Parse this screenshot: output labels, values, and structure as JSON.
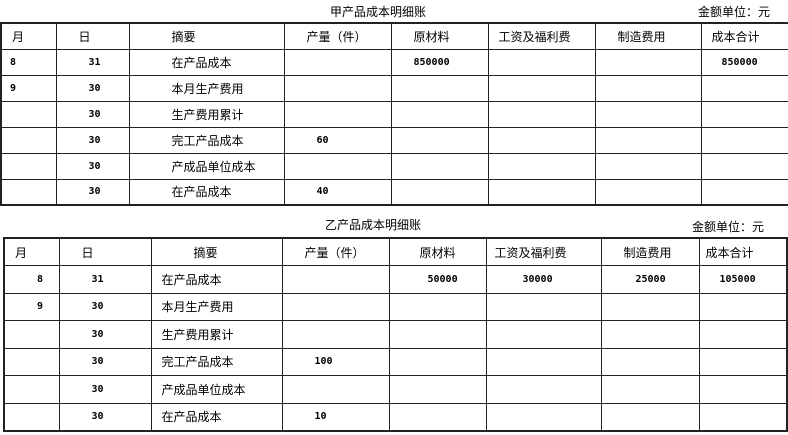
{
  "tables": [
    {
      "title": "甲产品成本明细账",
      "unit": "金额单位：元",
      "headers": [
        "月",
        "日",
        "摘要",
        "产量（件）",
        "原材料",
        "工资及福利费",
        "制造费用",
        "成本合计"
      ],
      "rows": [
        [
          "8",
          "31",
          "在产品成本",
          "",
          "850000",
          "",
          "",
          "850000"
        ],
        [
          "9",
          "30",
          "本月生产费用",
          "",
          "",
          "",
          "",
          ""
        ],
        [
          "",
          "30",
          "生产费用累计",
          "",
          "",
          "",
          "",
          ""
        ],
        [
          "",
          "30",
          "完工产品成本",
          "60",
          "",
          "",
          "",
          ""
        ],
        [
          "",
          "30",
          "产成品单位成本",
          "",
          "",
          "",
          "",
          ""
        ],
        [
          "",
          "30",
          "在产品成本",
          "40",
          "",
          "",
          "",
          ""
        ]
      ]
    },
    {
      "title": "乙产品成本明细账",
      "unit": "金额单位：元",
      "headers": [
        "月",
        "日",
        "摘要",
        "产量（件）",
        "原材料",
        "工资及福利费",
        "制造费用",
        "成本合计"
      ],
      "rows": [
        [
          "8",
          "31",
          "在产品成本",
          "",
          "50000",
          "30000",
          "25000",
          "105000"
        ],
        [
          "9",
          "30",
          "本月生产费用",
          "",
          "",
          "",
          "",
          ""
        ],
        [
          "",
          "30",
          "生产费用累计",
          "",
          "",
          "",
          "",
          ""
        ],
        [
          "",
          "30",
          "完工产品成本",
          "100",
          "",
          "",
          "",
          ""
        ],
        [
          "",
          "30",
          "产成品单位成本",
          "",
          "",
          "",
          "",
          ""
        ],
        [
          "",
          "30",
          "在产品成本",
          "10",
          "",
          "",
          "",
          ""
        ]
      ]
    }
  ]
}
